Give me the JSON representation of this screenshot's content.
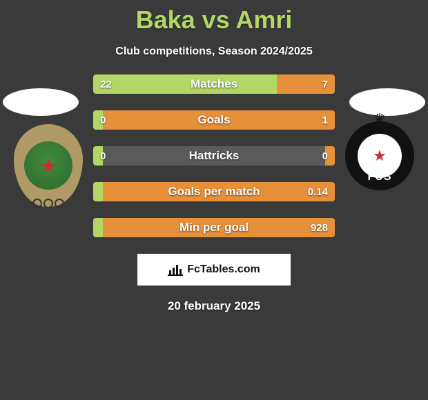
{
  "title": "Baka vs Amri",
  "subtitle": "Club competitions, Season 2024/2025",
  "footer_brand": "FcTables.com",
  "date_text": "20 february 2025",
  "colors": {
    "background": "#3a3a3a",
    "title": "#b3d666",
    "left_bar": "#b3d666",
    "right_bar": "#e6913a",
    "bar_bg": "#5a5a5a",
    "text": "#ffffff"
  },
  "bars": [
    {
      "label": "Matches",
      "left_val": "22",
      "right_val": "7",
      "left_pct": 76,
      "right_pct": 24
    },
    {
      "label": "Goals",
      "left_val": "0",
      "right_val": "1",
      "left_pct": 4,
      "right_pct": 96
    },
    {
      "label": "Hattricks",
      "left_val": "0",
      "right_val": "0",
      "left_pct": 4,
      "right_pct": 4
    },
    {
      "label": "Goals per match",
      "left_val": "",
      "right_val": "0.14",
      "left_pct": 4,
      "right_pct": 96
    },
    {
      "label": "Min per goal",
      "left_val": "",
      "right_val": "928",
      "left_pct": 4,
      "right_pct": 96
    }
  ],
  "left_badge_label": "FAR Rabat crest",
  "right_badge_label": "FUS Rabat crest"
}
